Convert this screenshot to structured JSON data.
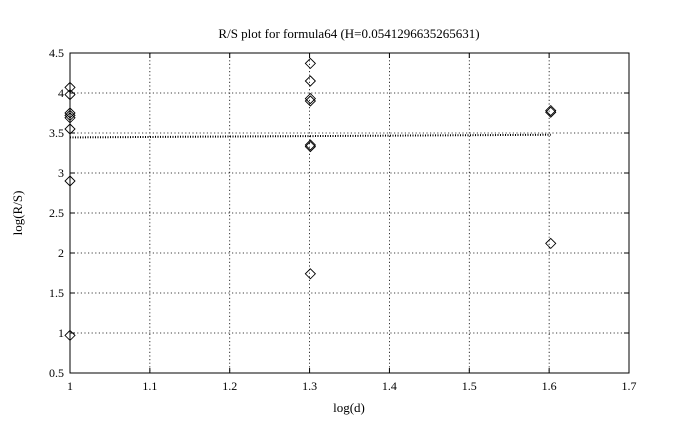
{
  "chart_data": {
    "type": "scatter",
    "title": "R/S plot for formula64 (H=0.0541296635265631)",
    "xlabel": "log(d)",
    "ylabel": "log(R/S)",
    "xlim": [
      1,
      1.7
    ],
    "ylim": [
      0.5,
      4.5
    ],
    "xticks": [
      1,
      1.1,
      1.2,
      1.3,
      1.4,
      1.5,
      1.6,
      1.7
    ],
    "yticks": [
      0.5,
      1,
      1.5,
      2,
      2.5,
      3,
      3.5,
      4,
      4.5
    ],
    "xtick_labels": [
      "1",
      "1.1",
      "1.2",
      "1.3",
      "1.4",
      "1.5",
      "1.6",
      "1.7"
    ],
    "ytick_labels": [
      "0.5",
      "1",
      "1.5",
      "2",
      "2.5",
      "3",
      "3.5",
      "4",
      "4.5"
    ],
    "grid": true,
    "marker": "diamond",
    "series": [
      {
        "points": [
          [
            1,
            4.07
          ],
          [
            1,
            3.98
          ],
          [
            1,
            3.75
          ],
          [
            1,
            3.72
          ],
          [
            1,
            3.69
          ],
          [
            1,
            3.55
          ],
          [
            1,
            2.9
          ],
          [
            1,
            0.97
          ],
          [
            1.301,
            4.37
          ],
          [
            1.301,
            4.15
          ],
          [
            1.301,
            3.93
          ],
          [
            1.301,
            3.9
          ],
          [
            1.301,
            3.35
          ],
          [
            1.301,
            3.33
          ],
          [
            1.301,
            1.74
          ],
          [
            1.602,
            3.78
          ],
          [
            1.602,
            3.76
          ],
          [
            1.602,
            2.12
          ]
        ]
      }
    ],
    "fit_line": {
      "x": [
        1,
        1.602
      ],
      "y": [
        3.445,
        3.478
      ]
    }
  }
}
